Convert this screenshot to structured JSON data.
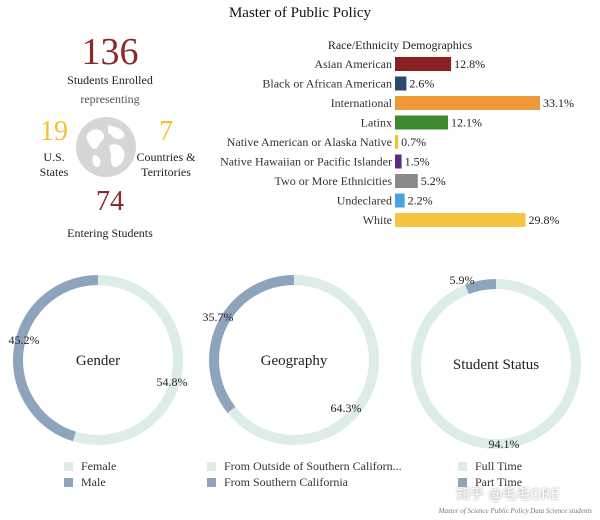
{
  "page_title": "Master of Public Policy",
  "stats": {
    "enrolled_value": "136",
    "enrolled_label": "Students Enrolled",
    "representing": "representing",
    "states_value": "19",
    "states_label_1": "U.S.",
    "states_label_2": "States",
    "countries_value": "7",
    "countries_label_1": "Countries &",
    "countries_label_2": "Territories",
    "entering_value": "74",
    "entering_label": "Entering Students"
  },
  "globe_icon": "globe-icon",
  "chart_data": [
    {
      "type": "bar",
      "orientation": "horizontal",
      "title": "Race/Ethnicity Demographics",
      "categories": [
        "Asian American",
        "Black or African American",
        "International",
        "Latinx",
        "Native American or Alaska Native",
        "Native Hawaiian or Pacific Islander",
        "Two or More Ethnicities",
        "Undeclared",
        "White"
      ],
      "values": [
        12.8,
        2.6,
        33.1,
        12.1,
        0.7,
        1.5,
        5.2,
        2.2,
        29.8
      ],
      "value_labels": [
        "12.8%",
        "2.6%",
        "33.1%",
        "12.1%",
        "0.7%",
        "1.5%",
        "5.2%",
        "2.2%",
        "29.8%"
      ],
      "colors": [
        "#8b2020",
        "#2d4a6e",
        "#ee9a3a",
        "#3f8a2e",
        "#f2c230",
        "#5c2d7d",
        "#8a8a8a",
        "#4aa3df",
        "#f5c542"
      ]
    },
    {
      "type": "pie",
      "subtype": "donut",
      "center_label": "Gender",
      "slices": [
        {
          "name": "Female",
          "value": 54.8,
          "label": "54.8%",
          "color": "#dcece6"
        },
        {
          "name": "Male",
          "value": 45.2,
          "label": "45.2%",
          "color": "#8ea3bc"
        }
      ]
    },
    {
      "type": "pie",
      "subtype": "donut",
      "center_label": "Geography",
      "slices": [
        {
          "name": "From Outside of Southern Californ...",
          "value": 64.3,
          "label": "64.3%",
          "color": "#dcece6"
        },
        {
          "name": "From Southern California",
          "value": 35.7,
          "label": "35.7%",
          "color": "#8ea3bc"
        }
      ]
    },
    {
      "type": "pie",
      "subtype": "donut",
      "center_label": "Student Status",
      "slices": [
        {
          "name": "Full Time",
          "value": 94.1,
          "label": "94.1%",
          "color": "#dcece6"
        },
        {
          "name": "Part Time",
          "value": 5.9,
          "label": "5.9%",
          "color": "#8ea3bc"
        }
      ]
    }
  ],
  "watermark": {
    "line1": "Master of Science Public Policy Data Science students",
    "zhihu": "知乎 @毛毛GRE"
  }
}
